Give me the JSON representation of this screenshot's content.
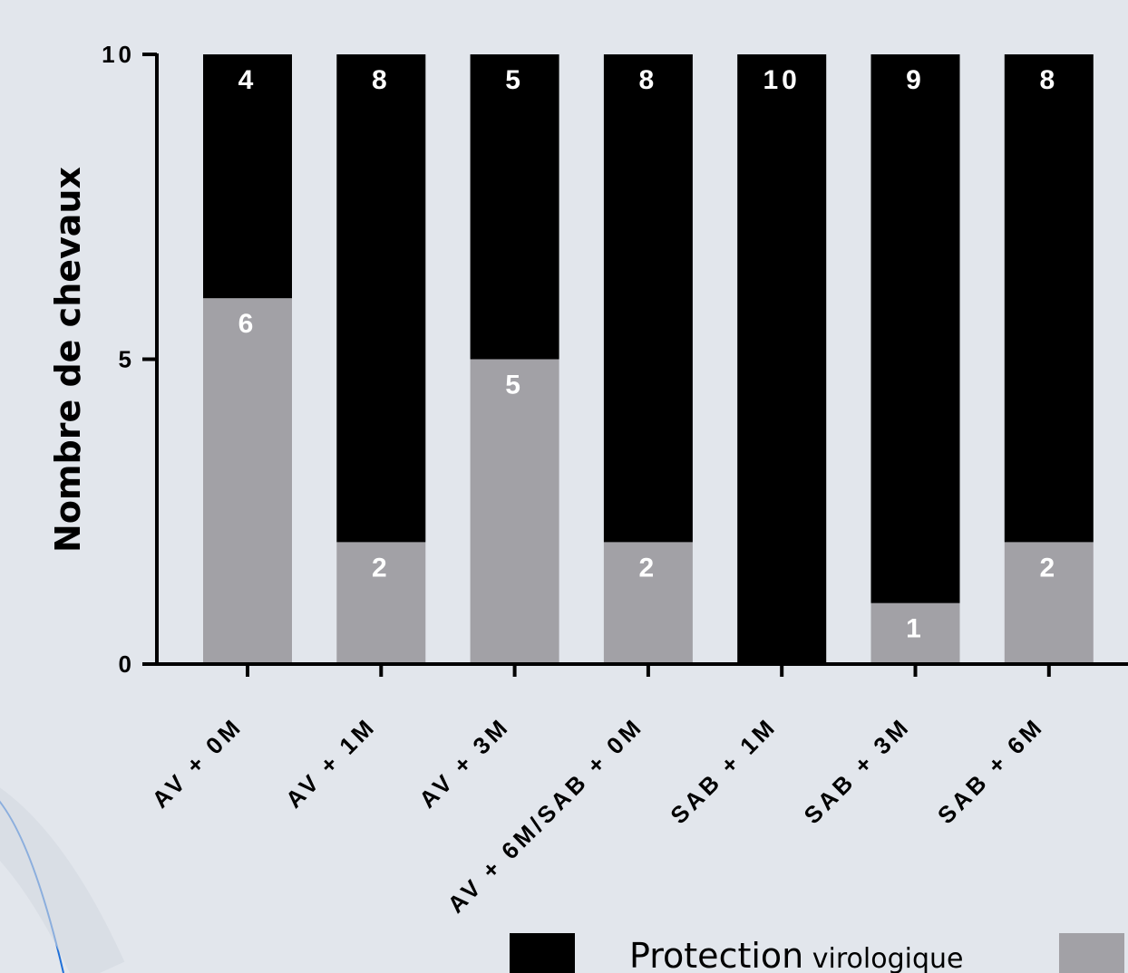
{
  "colors": {
    "background": "#e2e6ec",
    "protection": "#000000",
    "other": "#a2a1a6",
    "decor_arc": "#1f6fd8"
  },
  "chart_data": {
    "type": "bar",
    "stacked": true,
    "title": "",
    "xlabel": "",
    "ylabel": "Nombre de chevaux",
    "ylim": [
      0,
      10
    ],
    "yticks": [
      "0",
      "5",
      "10"
    ],
    "categories": [
      "AV + 0M",
      "AV + 1M",
      "AV + 3M",
      "AV + 6M/SAB + 0M",
      "SAB + 1M",
      "SAB + 3M",
      "SAB + 6M"
    ],
    "series": [
      {
        "name": "",
        "color": "#a2a1a6",
        "values": [
          6,
          2,
          5,
          2,
          0,
          1,
          2
        ]
      },
      {
        "name": "Protection virologique",
        "color": "#000000",
        "values": [
          4,
          8,
          5,
          8,
          10,
          9,
          8
        ]
      }
    ],
    "legend": {
      "placement": "bottom",
      "items": [
        {
          "label_main": "Protection",
          "label_rest": " virologique",
          "color": "#000000"
        },
        {
          "label_main": "",
          "label_rest": "",
          "color": "#a2a1a6"
        }
      ]
    }
  }
}
